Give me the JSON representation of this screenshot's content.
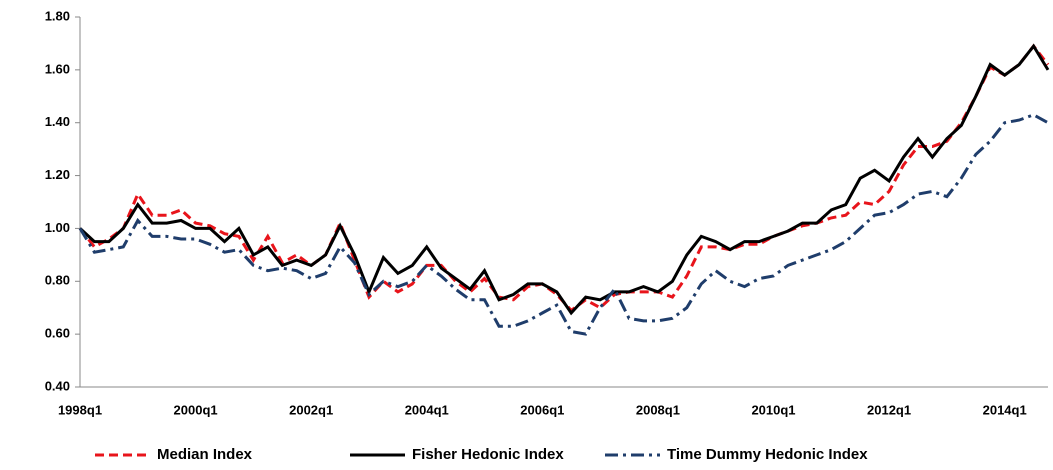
{
  "chart_data": {
    "type": "line",
    "categories": [
      "1998q1",
      null,
      null,
      null,
      null,
      null,
      null,
      null,
      "2000q1",
      null,
      null,
      null,
      null,
      null,
      null,
      null,
      "2002q1",
      null,
      null,
      null,
      null,
      null,
      null,
      null,
      "2004q1",
      null,
      null,
      null,
      null,
      null,
      null,
      null,
      "2006q1",
      null,
      null,
      null,
      null,
      null,
      null,
      null,
      "2008q1",
      null,
      null,
      null,
      null,
      null,
      null,
      null,
      "2010q1",
      null,
      null,
      null,
      null,
      null,
      null,
      null,
      "2012q1",
      null,
      null,
      null,
      null,
      null,
      null,
      null,
      "2014q1",
      null,
      null,
      null
    ],
    "series": [
      {
        "name": "Median Index",
        "color": "#e8141b",
        "dash": "9,5",
        "values": [
          1.0,
          0.93,
          0.96,
          1.0,
          1.13,
          1.05,
          1.05,
          1.07,
          1.02,
          1.01,
          0.98,
          0.97,
          0.88,
          0.97,
          0.87,
          0.9,
          0.86,
          0.9,
          1.02,
          0.88,
          0.74,
          0.8,
          0.76,
          0.79,
          0.86,
          0.86,
          0.8,
          0.76,
          0.81,
          0.74,
          0.73,
          0.78,
          0.79,
          0.75,
          0.69,
          0.73,
          0.7,
          0.75,
          0.76,
          0.76,
          0.76,
          0.74,
          0.82,
          0.93,
          0.93,
          0.92,
          0.94,
          0.94,
          0.97,
          0.99,
          1.01,
          1.02,
          1.04,
          1.05,
          1.1,
          1.09,
          1.14,
          1.24,
          1.31,
          1.31,
          1.33,
          1.4,
          1.5,
          1.61,
          1.58,
          1.62,
          1.69,
          1.62
        ]
      },
      {
        "name": "Fisher Hedonic Index",
        "color": "#000000",
        "dash": "none",
        "values": [
          1.0,
          0.95,
          0.95,
          1.0,
          1.09,
          1.02,
          1.02,
          1.03,
          1.0,
          1.0,
          0.95,
          1.0,
          0.9,
          0.93,
          0.86,
          0.88,
          0.86,
          0.9,
          1.01,
          0.9,
          0.76,
          0.89,
          0.83,
          0.86,
          0.93,
          0.85,
          0.81,
          0.77,
          0.84,
          0.73,
          0.75,
          0.79,
          0.79,
          0.76,
          0.68,
          0.74,
          0.73,
          0.76,
          0.76,
          0.78,
          0.76,
          0.8,
          0.9,
          0.97,
          0.95,
          0.92,
          0.95,
          0.95,
          0.97,
          0.99,
          1.02,
          1.02,
          1.07,
          1.09,
          1.19,
          1.22,
          1.18,
          1.27,
          1.34,
          1.27,
          1.34,
          1.39,
          1.5,
          1.62,
          1.58,
          1.62,
          1.69,
          1.6
        ]
      },
      {
        "name": "Time Dummy Hedonic Index",
        "color": "#1f3d6b",
        "dash": "13,5,3,5",
        "values": [
          1.0,
          0.91,
          0.92,
          0.93,
          1.03,
          0.97,
          0.97,
          0.96,
          0.96,
          0.94,
          0.91,
          0.92,
          0.86,
          0.84,
          0.85,
          0.84,
          0.81,
          0.83,
          0.93,
          0.87,
          0.75,
          0.8,
          0.78,
          0.8,
          0.86,
          0.82,
          0.77,
          0.73,
          0.73,
          0.63,
          0.63,
          0.65,
          0.68,
          0.71,
          0.61,
          0.6,
          0.7,
          0.77,
          0.66,
          0.65,
          0.65,
          0.66,
          0.7,
          0.79,
          0.84,
          0.8,
          0.78,
          0.81,
          0.82,
          0.86,
          0.88,
          0.9,
          0.92,
          0.95,
          1.0,
          1.05,
          1.06,
          1.09,
          1.13,
          1.14,
          1.12,
          1.19,
          1.28,
          1.33,
          1.4,
          1.41,
          1.43,
          1.4
        ]
      }
    ],
    "ylim": [
      0.4,
      1.8
    ],
    "yticks": [
      {
        "value": 0.4,
        "label": "0.40"
      },
      {
        "value": 0.6,
        "label": "0.60"
      },
      {
        "value": 0.8,
        "label": "0.80"
      },
      {
        "value": 1.0,
        "label": "1.00"
      },
      {
        "value": 1.2,
        "label": "1.20"
      },
      {
        "value": 1.4,
        "label": "1.40"
      },
      {
        "value": 1.6,
        "label": "1.60"
      },
      {
        "value": 1.8,
        "label": "1.80"
      }
    ],
    "grid": false,
    "legend": "bottom"
  }
}
